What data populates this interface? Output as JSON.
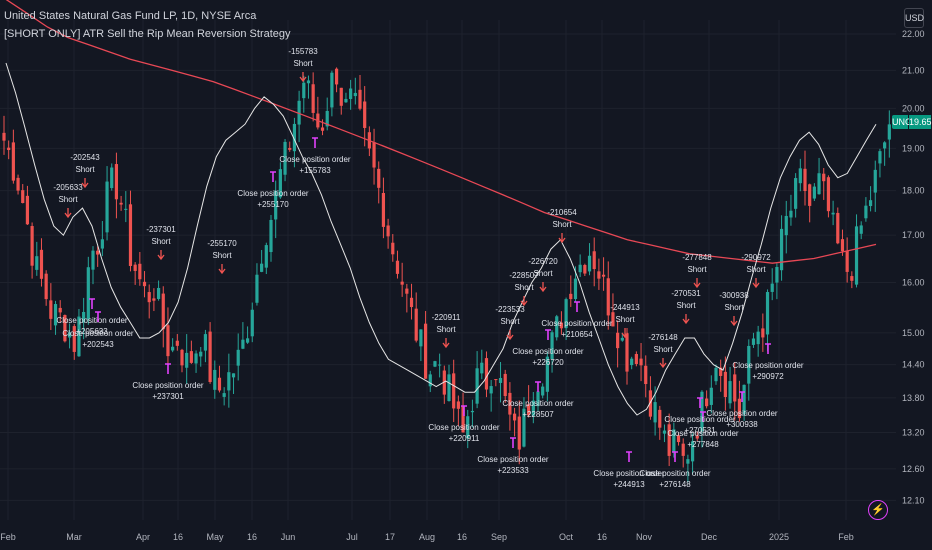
{
  "header": {
    "title": "United States Natural Gas Fund LP, 1D, NYSE Arca",
    "subtitle": "[SHORT ONLY] ATR Sell the Rip Mean Reversion Strategy",
    "currency": "USD",
    "ticker_badge": "UNG",
    "last_price": "19.65"
  },
  "colors": {
    "background": "#131722",
    "up": "#26a69a",
    "down": "#ef5350",
    "long_ma": "#e84855",
    "short_ma": "#e6e6e6",
    "close_marker": "#e040fb",
    "entry_marker": "#ef5350",
    "grid": "#1e222d",
    "text": "#d1d4dc"
  },
  "chart_data": {
    "type": "candlestick",
    "title": "United States Natural Gas Fund LP, 1D, NYSE Arca",
    "subtitle": "[SHORT ONLY] ATR Sell the Rip Mean Reversion Strategy",
    "scale": "log",
    "ylim": [
      11.8,
      22.4
    ],
    "y_ticks": [
      "22.00",
      "21.00",
      "20.00",
      "19.00",
      "18.00",
      "17.00",
      "16.00",
      "15.00",
      "14.40",
      "13.80",
      "13.20",
      "12.60",
      "12.10"
    ],
    "x_ticks": [
      "Feb",
      "Mar",
      "Apr",
      "16",
      "May",
      "16",
      "Jun",
      "Jul",
      "17",
      "Aug",
      "16",
      "Sep",
      "Oct",
      "16",
      "Nov",
      "Dec",
      "2025",
      "Feb"
    ],
    "last_price": 19.65,
    "ohlc_path": [
      19.2,
      18.7,
      18.1,
      17.2,
      16.3,
      15.9,
      15.4,
      15.3,
      15.1,
      14.8,
      15.6,
      16.6,
      16.9,
      17.8,
      18.3,
      17.6,
      16.6,
      16.1,
      15.7,
      15.9,
      15.2,
      14.6,
      14.9,
      14.4,
      14.6,
      15.0,
      14.3,
      13.9,
      14.1,
      14.3,
      14.6,
      15.3,
      16.2,
      17.1,
      17.5,
      18.4,
      19.0,
      19.9,
      20.8,
      20.0,
      19.4,
      20.3,
      21.1,
      19.9,
      20.2,
      19.6,
      18.9,
      18.3,
      17.6,
      16.8,
      16.3,
      15.6,
      15.1,
      14.6,
      14.3,
      14.5,
      14.0,
      13.6,
      13.1,
      13.7,
      14.2,
      14.1,
      14.5,
      13.9,
      13.4,
      13.0,
      13.5,
      14.1,
      14.3,
      14.6,
      15.1,
      15.6,
      16.2,
      16.4,
      16.7,
      16.4,
      15.8,
      15.4,
      14.9,
      14.5,
      14.7,
      14.2,
      13.7,
      13.3,
      12.9,
      13.0,
      12.7,
      13.1,
      13.5,
      14.0,
      14.6,
      14.2,
      14.0,
      13.5,
      14.3,
      15.0,
      15.2,
      15.7,
      16.5,
      17.3,
      17.8,
      18.3,
      17.6,
      18.2,
      17.7,
      17.0,
      16.4,
      16.2,
      16.9,
      17.5,
      18.1,
      18.8,
      19.65
    ],
    "series": [
      {
        "name": "",
        "type": "moving-average",
        "color": "#e84855",
        "values": [
          23.0,
          22.6,
          22.2,
          21.9,
          21.7,
          21.5,
          21.3,
          21.15,
          21.0,
          20.85,
          20.7,
          20.5,
          20.3,
          20.1,
          19.9,
          19.7,
          19.5,
          19.3,
          19.1,
          18.9,
          18.7,
          18.5,
          18.3,
          18.1,
          17.9,
          17.7,
          17.5,
          17.35,
          17.2,
          17.05,
          16.9,
          16.8,
          16.7,
          16.6,
          16.55,
          16.5,
          16.45,
          16.4,
          16.45,
          16.5,
          16.6,
          16.7,
          16.8
        ]
      },
      {
        "name": "",
        "type": "moving-average",
        "color": "#e6e6e6",
        "values": [
          21.2,
          20.4,
          19.5,
          18.6,
          17.8,
          17.2,
          17.0,
          17.4,
          17.6,
          17.2,
          16.5,
          15.9,
          15.5,
          15.2,
          14.9,
          14.9,
          15.0,
          15.2,
          15.6,
          16.3,
          17.2,
          18.1,
          18.8,
          19.2,
          19.4,
          19.6,
          20.0,
          20.3,
          20.1,
          19.8,
          19.3,
          18.8,
          18.4,
          17.9,
          17.3,
          16.8,
          16.3,
          15.7,
          15.2,
          14.8,
          14.5,
          14.4,
          14.3,
          14.2,
          14.1,
          14.0,
          14.1,
          14.0,
          13.9,
          13.9,
          14.1,
          14.4,
          14.7,
          15.2,
          15.6,
          16.0,
          16.3,
          16.7,
          16.9,
          16.5,
          16.0,
          15.4,
          14.9,
          14.4,
          14.0,
          13.7,
          13.5,
          13.6,
          13.9,
          14.3,
          14.6,
          14.9,
          14.9,
          14.6,
          14.4,
          14.3,
          14.8,
          15.4,
          16.1,
          16.8,
          17.6,
          18.3,
          18.8,
          19.2,
          19.4,
          19.1,
          18.6,
          18.3,
          18.4,
          18.8,
          19.2,
          19.6
        ]
      }
    ],
    "entry_labels": [
      {
        "id": "-202543",
        "text": "Short"
      },
      {
        "id": "-205633",
        "text": "Short"
      },
      {
        "id": "-237301",
        "text": "Short"
      },
      {
        "id": "-255170",
        "text": "Short"
      },
      {
        "id": "-155783",
        "text": "Short"
      },
      {
        "id": "-220911",
        "text": "Short"
      },
      {
        "id": "-228507",
        "text": "Short"
      },
      {
        "id": "-223533",
        "text": "Short"
      },
      {
        "id": "-226720",
        "text": "Short"
      },
      {
        "id": "-210654",
        "text": "Short"
      },
      {
        "id": "-244913",
        "text": "Short"
      },
      {
        "id": "-276148",
        "text": "Short"
      },
      {
        "id": "-277848",
        "text": "Short"
      },
      {
        "id": "-270531",
        "text": "Short"
      },
      {
        "id": "-300938",
        "text": "Short"
      },
      {
        "id": "-290972",
        "text": "Short"
      }
    ],
    "close_labels": [
      {
        "text": "Close position order",
        "pnl": "+205633"
      },
      {
        "text": "Close position order",
        "pnl": "+202543"
      },
      {
        "text": "Close position order",
        "pnl": "+237301"
      },
      {
        "text": "Close position order",
        "pnl": "+255170"
      },
      {
        "text": "Close position order",
        "pnl": "+155783"
      },
      {
        "text": "Close position order",
        "pnl": "+220911"
      },
      {
        "text": "Close position order",
        "pnl": "+223533"
      },
      {
        "text": "Close position order",
        "pnl": "+228507"
      },
      {
        "text": "Close position order",
        "pnl": "+226720"
      },
      {
        "text": "Close position order",
        "pnl": "+210654"
      },
      {
        "text": "Close position order",
        "pnl": "+244913"
      },
      {
        "text": "Close position order",
        "pnl": "+276148"
      },
      {
        "text": "Close position order",
        "pnl": "+277848"
      },
      {
        "text": "Close position order",
        "pnl": "+270531"
      },
      {
        "text": "Close position order",
        "pnl": "+300938"
      },
      {
        "text": "Close position order",
        "pnl": "+290972"
      }
    ]
  }
}
